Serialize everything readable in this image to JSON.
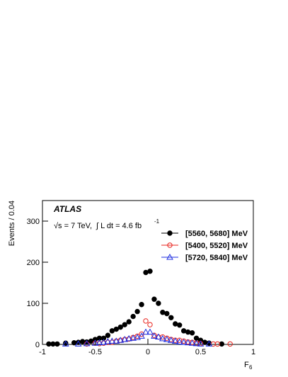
{
  "chart_data": {
    "type": "scatter",
    "experiment": "ATLAS",
    "energy": "√s = 7 TeV,",
    "lumi": "∫ L dt = 4.6 fb",
    "lumi_exponent": "-1",
    "xlabel": "F",
    "xlabel_subscript": "6",
    "ylabel": "Events / 0.04",
    "xlim": [
      -1,
      1
    ],
    "xticks": [
      -1,
      -0.5,
      0,
      0.5,
      1
    ],
    "ylim": [
      0,
      350
    ],
    "yticks": [
      0,
      100,
      200,
      300
    ],
    "legend_loc": "upper right",
    "series": [
      {
        "name": "[5560, 5680] MeV",
        "color": "#000000",
        "marker": "filled-circle",
        "x": [
          -0.94,
          -0.9,
          -0.86,
          -0.78,
          -0.7,
          -0.66,
          -0.62,
          -0.58,
          -0.54,
          -0.5,
          -0.46,
          -0.42,
          -0.38,
          -0.34,
          -0.3,
          -0.26,
          -0.22,
          -0.18,
          -0.14,
          -0.1,
          -0.06,
          -0.02,
          0.02,
          0.06,
          0.1,
          0.14,
          0.18,
          0.22,
          0.26,
          0.3,
          0.34,
          0.38,
          0.42,
          0.46,
          0.5,
          0.54,
          0.58,
          0.7
        ],
        "values": [
          1,
          1,
          1,
          3,
          4,
          5,
          7,
          6,
          8,
          12,
          15,
          15,
          22,
          33,
          37,
          42,
          48,
          55,
          68,
          80,
          97,
          175,
          178,
          110,
          100,
          78,
          75,
          65,
          50,
          47,
          33,
          30,
          28,
          15,
          10,
          5,
          3,
          1
        ]
      },
      {
        "name": "[5400, 5520] MeV",
        "color": "#e8231d",
        "marker": "open-circle",
        "x": [
          -0.58,
          -0.5,
          -0.46,
          -0.42,
          -0.38,
          -0.34,
          -0.3,
          -0.26,
          -0.22,
          -0.18,
          -0.14,
          -0.1,
          -0.06,
          -0.02,
          0.02,
          0.06,
          0.1,
          0.14,
          0.18,
          0.22,
          0.26,
          0.3,
          0.34,
          0.38,
          0.42,
          0.46,
          0.5,
          0.62,
          0.66,
          0.78
        ],
        "values": [
          1,
          3,
          2,
          3,
          5,
          5,
          8,
          10,
          12,
          13,
          17,
          20,
          25,
          57,
          48,
          22,
          18,
          18,
          15,
          12,
          10,
          10,
          8,
          6,
          5,
          3,
          2,
          1,
          1,
          1
        ]
      },
      {
        "name": "[5720, 5840] MeV",
        "color": "#1f2fe0",
        "marker": "open-triangle",
        "x": [
          -0.78,
          -0.66,
          -0.58,
          -0.5,
          -0.46,
          -0.42,
          -0.38,
          -0.34,
          -0.3,
          -0.26,
          -0.22,
          -0.18,
          -0.14,
          -0.1,
          -0.06,
          -0.02,
          0.02,
          0.06,
          0.1,
          0.14,
          0.18,
          0.22,
          0.26,
          0.3,
          0.34,
          0.38,
          0.42,
          0.46,
          0.5,
          0.58
        ],
        "values": [
          1,
          1,
          2,
          3,
          4,
          5,
          7,
          8,
          8,
          10,
          12,
          14,
          15,
          17,
          20,
          30,
          30,
          20,
          18,
          14,
          12,
          10,
          8,
          6,
          5,
          4,
          3,
          2,
          1,
          1
        ]
      }
    ]
  }
}
